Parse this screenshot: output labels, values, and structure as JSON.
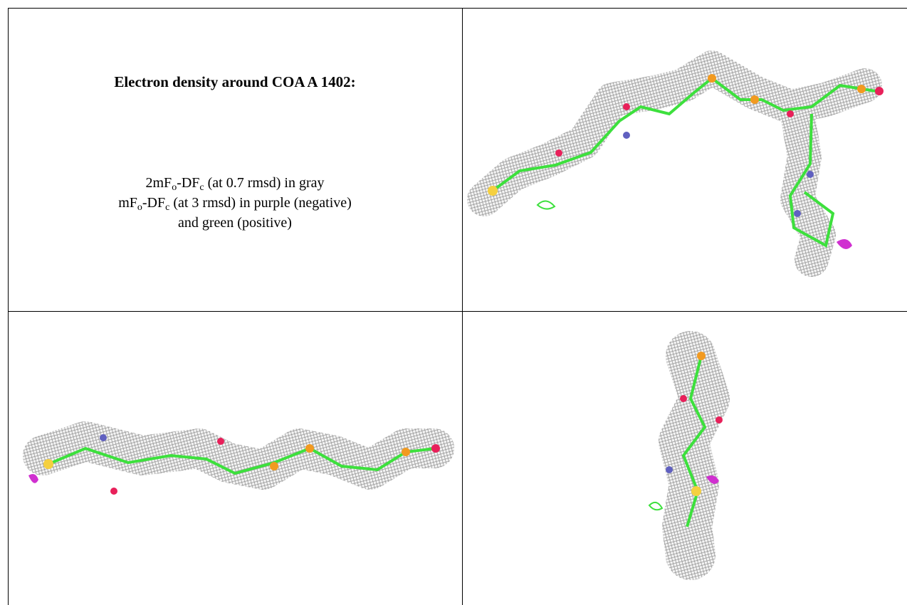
{
  "figure": {
    "title": "Electron density around COA A 1402:",
    "legend_lines": [
      [
        {
          "text": "2mF"
        },
        {
          "sub": "o"
        },
        {
          "text": "-DF"
        },
        {
          "sub": "c"
        },
        {
          "text": " (at 0.7 rmsd) in gray"
        }
      ],
      [
        {
          "text": "mF"
        },
        {
          "sub": "o"
        },
        {
          "text": "-DF"
        },
        {
          "sub": "c"
        },
        {
          "text": " (at 3 rmsd) in purple (negative)"
        }
      ],
      [
        {
          "text": "and green (positive)"
        }
      ]
    ]
  }
}
